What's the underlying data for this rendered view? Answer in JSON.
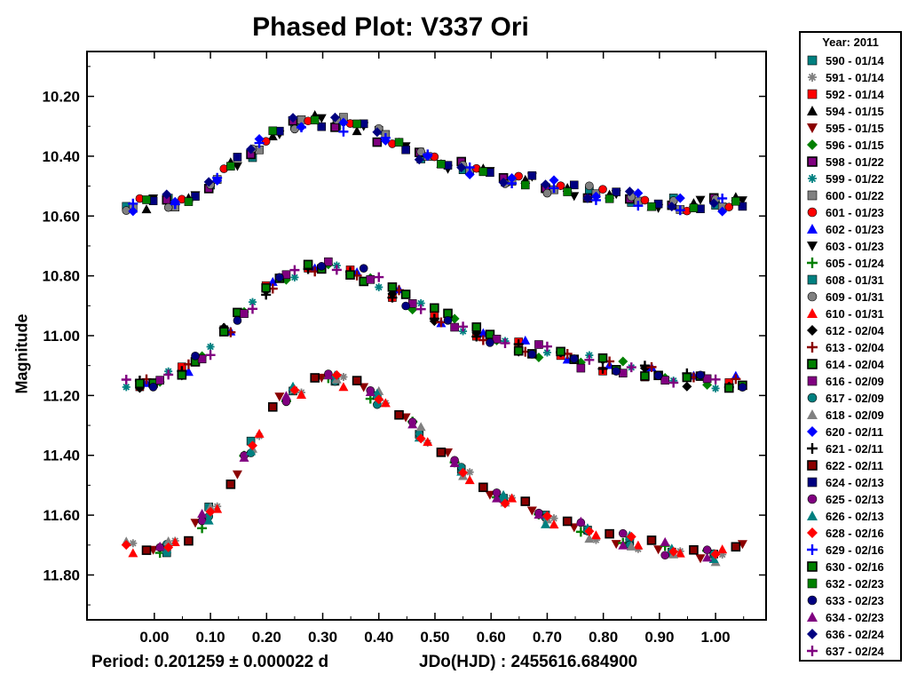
{
  "chart_data": {
    "type": "scatter",
    "title": "Phased Plot: V337 Ori",
    "ylabel": "Magnitude",
    "xlim": [
      -0.12,
      1.09
    ],
    "ylim": [
      11.95,
      10.05
    ],
    "x_ticks": [
      "0.00",
      "0.10",
      "0.20",
      "0.30",
      "0.40",
      "0.50",
      "0.60",
      "0.70",
      "0.80",
      "0.90",
      "1.00"
    ],
    "y_ticks": [
      "10.20",
      "10.40",
      "10.60",
      "10.80",
      "11.00",
      "11.20",
      "11.40",
      "11.60",
      "11.80"
    ],
    "curves": [
      {
        "name": "top",
        "phase": [
          -0.05,
          0.0,
          0.05,
          0.1,
          0.15,
          0.2,
          0.25,
          0.3,
          0.35,
          0.4,
          0.45,
          0.5,
          0.6,
          0.7,
          0.8,
          0.9,
          0.95,
          1.0,
          1.05
        ],
        "mag": [
          10.56,
          10.56,
          10.54,
          10.49,
          10.42,
          10.34,
          10.29,
          10.28,
          10.3,
          10.33,
          10.37,
          10.41,
          10.46,
          10.5,
          10.53,
          10.55,
          10.56,
          10.56,
          10.56
        ]
      },
      {
        "name": "middle",
        "phase": [
          -0.05,
          0.0,
          0.05,
          0.1,
          0.15,
          0.2,
          0.25,
          0.3,
          0.35,
          0.4,
          0.45,
          0.5,
          0.6,
          0.7,
          0.8,
          0.9,
          0.95,
          1.0,
          1.05
        ],
        "mag": [
          11.15,
          11.16,
          11.12,
          11.05,
          10.94,
          10.84,
          10.79,
          10.77,
          10.78,
          10.82,
          10.88,
          10.93,
          11.01,
          11.06,
          11.1,
          11.13,
          11.15,
          11.16,
          11.15
        ]
      },
      {
        "name": "bottom",
        "phase": [
          -0.05,
          0.0,
          0.05,
          0.1,
          0.15,
          0.2,
          0.25,
          0.3,
          0.35,
          0.4,
          0.45,
          0.5,
          0.6,
          0.7,
          0.8,
          0.9,
          0.95,
          1.0,
          1.05
        ],
        "mag": [
          11.7,
          11.73,
          11.69,
          11.59,
          11.45,
          11.27,
          11.18,
          11.15,
          11.16,
          11.21,
          11.28,
          11.37,
          11.52,
          11.61,
          11.67,
          11.71,
          11.73,
          11.74,
          11.72
        ]
      }
    ],
    "legend_title": "Year: 2011",
    "series": [
      {
        "name": "590 - 01/14",
        "marker": "square",
        "color": "#008080",
        "group": "top"
      },
      {
        "name": "591 - 01/14",
        "marker": "star",
        "color": "#808080",
        "group": "bottom"
      },
      {
        "name": "592 - 01/14",
        "marker": "square",
        "color": "#ff0000",
        "group": "middle"
      },
      {
        "name": "594 - 01/15",
        "marker": "triangle",
        "color": "#000000",
        "group": "top"
      },
      {
        "name": "595 - 01/15",
        "marker": "triangle-down",
        "color": "#8b0000",
        "group": "bottom"
      },
      {
        "name": "596 - 01/15",
        "marker": "diamond",
        "color": "#008000",
        "group": "middle"
      },
      {
        "name": "598 - 01/22",
        "marker": "square-outline",
        "color": "#800080",
        "group": "top"
      },
      {
        "name": "599 - 01/22",
        "marker": "star",
        "color": "#008080",
        "group": "middle"
      },
      {
        "name": "600 - 01/22",
        "marker": "square",
        "color": "#808080",
        "group": "top"
      },
      {
        "name": "601 - 01/23",
        "marker": "circle",
        "color": "#ff0000",
        "group": "top"
      },
      {
        "name": "602 - 01/23",
        "marker": "triangle",
        "color": "#0000ff",
        "group": "middle"
      },
      {
        "name": "603 - 01/23",
        "marker": "triangle-down",
        "color": "#000000",
        "group": "top"
      },
      {
        "name": "605 - 01/24",
        "marker": "plus",
        "color": "#008000",
        "group": "bottom"
      },
      {
        "name": "608 - 01/31",
        "marker": "square",
        "color": "#008080",
        "group": "bottom"
      },
      {
        "name": "609 - 01/31",
        "marker": "circle",
        "color": "#808080",
        "group": "top"
      },
      {
        "name": "610 - 01/31",
        "marker": "triangle",
        "color": "#ff0000",
        "group": "bottom"
      },
      {
        "name": "612 - 02/04",
        "marker": "diamond",
        "color": "#000000",
        "group": "middle"
      },
      {
        "name": "613 - 02/04",
        "marker": "plus",
        "color": "#8b0000",
        "group": "middle"
      },
      {
        "name": "614 - 02/04",
        "marker": "square-outline",
        "color": "#008000",
        "group": "middle"
      },
      {
        "name": "616 - 02/09",
        "marker": "square",
        "color": "#800080",
        "group": "middle"
      },
      {
        "name": "617 - 02/09",
        "marker": "circle",
        "color": "#008080",
        "group": "bottom"
      },
      {
        "name": "618 - 02/09",
        "marker": "triangle",
        "color": "#808080",
        "group": "bottom"
      },
      {
        "name": "620 - 02/11",
        "marker": "diamond",
        "color": "#0000ff",
        "group": "top"
      },
      {
        "name": "621 - 02/11",
        "marker": "plus",
        "color": "#000000",
        "group": "middle"
      },
      {
        "name": "622 - 02/11",
        "marker": "square-outline",
        "color": "#8b0000",
        "group": "bottom"
      },
      {
        "name": "624 - 02/13",
        "marker": "square",
        "color": "#000080",
        "group": "top"
      },
      {
        "name": "625 - 02/13",
        "marker": "circle",
        "color": "#800080",
        "group": "bottom"
      },
      {
        "name": "626 - 02/13",
        "marker": "triangle",
        "color": "#008080",
        "group": "bottom"
      },
      {
        "name": "628 - 02/16",
        "marker": "diamond",
        "color": "#ff0000",
        "group": "bottom"
      },
      {
        "name": "629 - 02/16",
        "marker": "plus",
        "color": "#0000ff",
        "group": "top"
      },
      {
        "name": "630 - 02/16",
        "marker": "square-outline",
        "color": "#008000",
        "group": "middle"
      },
      {
        "name": "632 - 02/23",
        "marker": "square",
        "color": "#008000",
        "group": "top"
      },
      {
        "name": "633 - 02/23",
        "marker": "circle",
        "color": "#000080",
        "group": "middle"
      },
      {
        "name": "634 - 02/23",
        "marker": "triangle",
        "color": "#800080",
        "group": "bottom"
      },
      {
        "name": "636 - 02/24",
        "marker": "diamond",
        "color": "#000080",
        "group": "top"
      },
      {
        "name": "637 - 02/24",
        "marker": "plus",
        "color": "#800080",
        "group": "middle"
      }
    ]
  },
  "footer": {
    "period": "Period: 0.201259 ± 0.000022 d",
    "epoch": "JDo(HJD) : 2455616.684900"
  }
}
